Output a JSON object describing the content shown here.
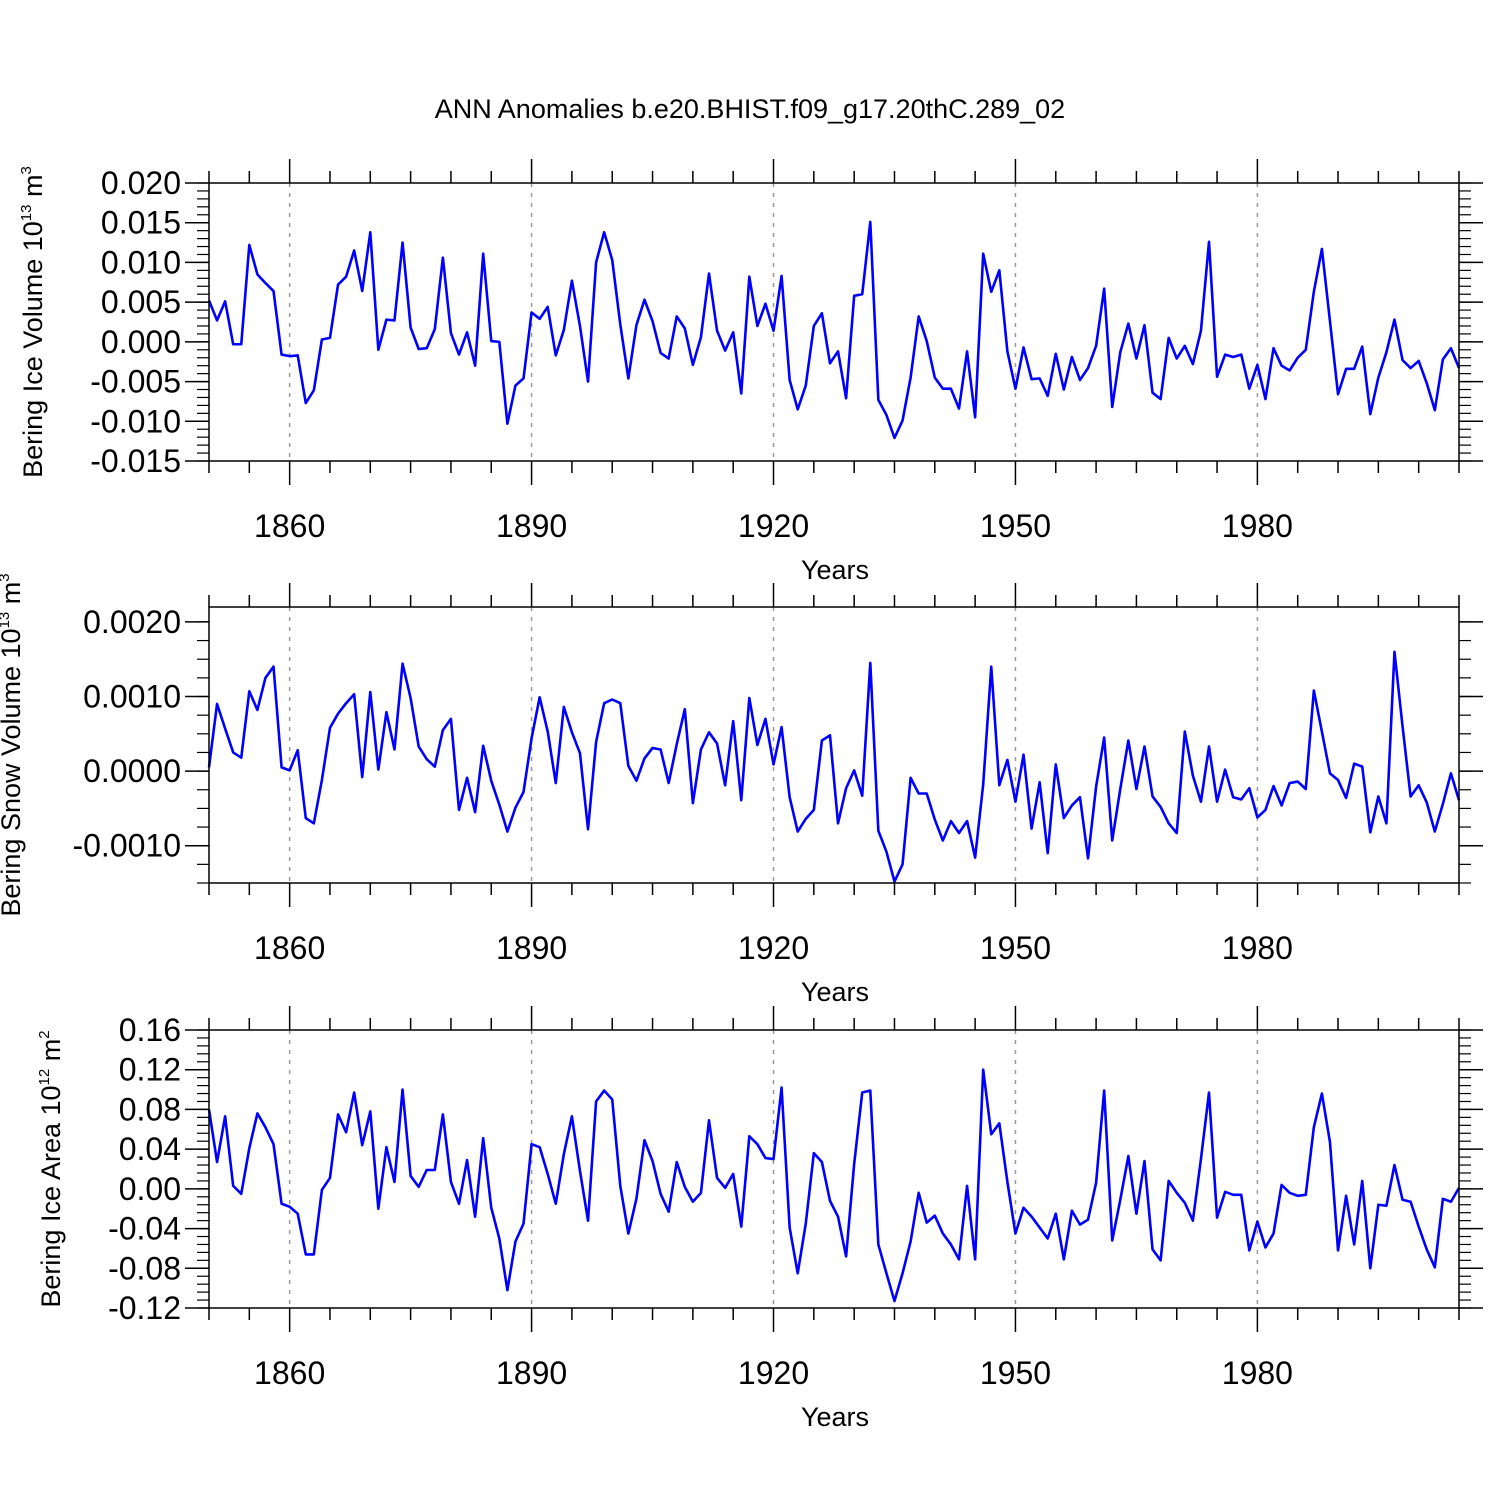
{
  "title": "ANN Anomalies b.e20.BHIST.f09_g17.20thC.289_02",
  "colors": {
    "series": "#0000ff",
    "axes": "#000000",
    "gridline": "#999999"
  },
  "chart_data": [
    {
      "type": "line",
      "title": "ANN Anomalies b.e20.BHIST.f09_g17.20thC.289_02",
      "xlabel": "Years",
      "ylabel": {
        "text": "Bering Ice Volume 10",
        "sup": "13",
        "text2": " m",
        "sup2": "3"
      },
      "xlim": [
        1850,
        2005
      ],
      "ylim": [
        -0.015,
        0.02
      ],
      "xticks": [
        1860,
        1890,
        1920,
        1950,
        1980
      ],
      "xtick_labels": [
        "1860",
        "1890",
        "1920",
        "1950",
        "1980"
      ],
      "yticks": [
        -0.015,
        -0.01,
        -0.005,
        0.0,
        0.005,
        0.01,
        0.015,
        0.02
      ],
      "ytick_labels": [
        "-0.015",
        "-0.010",
        "-0.005",
        "0.000",
        "0.005",
        "0.010",
        "0.015",
        "0.020"
      ],
      "grid": "vertical dashed at x ticks",
      "x_start": 1850,
      "values": [
        0.0052,
        0.0027,
        0.0051,
        -0.0003,
        -0.0003,
        0.0122,
        0.0085,
        0.0074,
        0.0064,
        -0.0016,
        -0.0018,
        -0.0017,
        -0.0077,
        -0.0061,
        0.0003,
        0.0005,
        0.0072,
        0.0082,
        0.0115,
        0.0064,
        0.0138,
        -0.001,
        0.0028,
        0.0027,
        0.0125,
        0.0018,
        -0.0009,
        -0.0008,
        0.0016,
        0.0106,
        0.0011,
        -0.0016,
        0.0012,
        -0.003,
        0.0111,
        0.0001,
        0.0,
        -0.0103,
        -0.0055,
        -0.0046,
        0.0037,
        0.0029,
        0.0044,
        -0.0017,
        0.0015,
        0.0077,
        0.002,
        -0.005,
        0.01,
        0.0138,
        0.0103,
        0.0022,
        -0.0046,
        0.0021,
        0.0053,
        0.0026,
        -0.0014,
        -0.0021,
        0.0032,
        0.0017,
        -0.0029,
        0.0006,
        0.0086,
        0.0014,
        -0.0011,
        0.0012,
        -0.0065,
        0.0082,
        0.002,
        0.0048,
        0.0014,
        0.0083,
        -0.0048,
        -0.0085,
        -0.0055,
        0.002,
        0.0036,
        -0.0027,
        -0.0012,
        -0.0071,
        0.0058,
        0.006,
        0.0151,
        -0.0073,
        -0.0092,
        -0.0121,
        -0.0099,
        -0.0045,
        0.0032,
        0.0001,
        -0.0045,
        -0.0059,
        -0.0059,
        -0.0084,
        -0.0012,
        -0.0095,
        0.0111,
        0.0063,
        0.009,
        -0.0012,
        -0.0059,
        -0.0007,
        -0.0047,
        -0.0046,
        -0.0068,
        -0.0015,
        -0.006,
        -0.0019,
        -0.0048,
        -0.0033,
        -0.0005,
        0.0067,
        -0.0082,
        -0.0013,
        0.0023,
        -0.0021,
        0.0021,
        -0.0064,
        -0.0072,
        0.0005,
        -0.0021,
        -0.0005,
        -0.0028,
        0.0014,
        0.0126,
        -0.0044,
        -0.0016,
        -0.0019,
        -0.0016,
        -0.0059,
        -0.0029,
        -0.0072,
        -0.0008,
        -0.003,
        -0.0036,
        -0.002,
        -0.001,
        0.0063,
        0.0117,
        0.0026,
        -0.0066,
        -0.0034,
        -0.0034,
        -0.0006,
        -0.0091,
        -0.0045,
        -0.0013,
        0.0028,
        -0.0023,
        -0.0033,
        -0.0024,
        -0.0052,
        -0.0086,
        -0.0022,
        -0.0008,
        -0.0033
      ]
    },
    {
      "type": "line",
      "xlabel": "Years",
      "ylabel": {
        "text": "Bering Snow Volume 10",
        "sup": "13",
        "text2": " m",
        "sup2": "3"
      },
      "xlim": [
        1850,
        2005
      ],
      "ylim": [
        -0.0015,
        0.0022
      ],
      "xticks": [
        1860,
        1890,
        1920,
        1950,
        1980
      ],
      "xtick_labels": [
        "1860",
        "1890",
        "1920",
        "1950",
        "1980"
      ],
      "yticks": [
        -0.001,
        0.0,
        0.001,
        0.002
      ],
      "ytick_labels": [
        "-0.0010",
        "0.0000",
        "0.0010",
        "0.0020"
      ],
      "minor_ytick_step": 0.00025,
      "grid": "vertical dashed at x ticks",
      "x_start": 1850,
      "values": [
        5e-05,
        0.0009,
        0.00057,
        0.00025,
        0.00018,
        0.00107,
        0.00082,
        0.00125,
        0.0014,
        5e-05,
        1e-05,
        0.00028,
        -0.00063,
        -0.0007,
        -0.00012,
        0.00058,
        0.00077,
        0.00091,
        0.00103,
        -8e-05,
        0.00106,
        2e-05,
        0.00079,
        0.00029,
        0.00144,
        0.00098,
        0.00033,
        0.00016,
        6e-05,
        0.00055,
        0.0007,
        -0.00052,
        -9e-05,
        -0.00055,
        0.00034,
        -0.00013,
        -0.00045,
        -0.00081,
        -0.00049,
        -0.00028,
        0.00044,
        0.00099,
        0.00053,
        -0.00016,
        0.00086,
        0.00052,
        0.00024,
        -0.00078,
        0.00039,
        0.00091,
        0.00096,
        0.00091,
        7e-05,
        -0.00013,
        0.00017,
        0.00031,
        0.00029,
        -0.00016,
        0.00036,
        0.00083,
        -0.00043,
        0.00029,
        0.00052,
        0.00037,
        -0.00019,
        0.00067,
        -0.00039,
        0.00098,
        0.00035,
        0.0007,
        9e-05,
        0.00059,
        -0.00035,
        -0.00081,
        -0.00064,
        -0.00052,
        0.00041,
        0.00048,
        -0.0007,
        -0.00023,
        1e-05,
        -0.00033,
        0.00145,
        -0.0008,
        -0.00108,
        -0.00148,
        -0.00125,
        -9e-05,
        -0.0003,
        -0.0003,
        -0.00065,
        -0.00093,
        -0.00067,
        -0.00083,
        -0.00067,
        -0.00116,
        -0.00018,
        0.0014,
        -0.00019,
        0.00015,
        -0.00041,
        0.00022,
        -0.00077,
        -0.00015,
        -0.0011,
        9e-05,
        -0.00063,
        -0.00046,
        -0.00035,
        -0.00117,
        -0.00021,
        0.00045,
        -0.00093,
        -0.00024,
        0.00041,
        -0.00024,
        0.00033,
        -0.00034,
        -0.00048,
        -0.0007,
        -0.00083,
        0.00053,
        -6e-05,
        -0.00041,
        0.00033,
        -0.00041,
        2e-05,
        -0.00035,
        -0.00038,
        -0.00023,
        -0.00062,
        -0.00052,
        -0.0002,
        -0.00046,
        -0.00016,
        -0.00014,
        -0.00024,
        0.00108,
        0.00053,
        -3e-05,
        -0.00012,
        -0.00036,
        0.0001,
        6e-05,
        -0.00082,
        -0.00034,
        -0.0007,
        0.0016,
        0.0006,
        -0.00034,
        -0.00019,
        -0.00042,
        -0.00081,
        -0.00044,
        -3e-05,
        -0.00039
      ]
    },
    {
      "type": "line",
      "xlabel": "Years",
      "ylabel": {
        "text": "Bering Ice Area 10",
        "sup": "12",
        "text2": " m",
        "sup2": "2"
      },
      "xlim": [
        1850,
        2005
      ],
      "ylim": [
        -0.12,
        0.16
      ],
      "xticks": [
        1860,
        1890,
        1920,
        1950,
        1980
      ],
      "xtick_labels": [
        "1860",
        "1890",
        "1920",
        "1950",
        "1980"
      ],
      "yticks": [
        -0.12,
        -0.08,
        -0.04,
        0.0,
        0.04,
        0.08,
        0.12,
        0.16
      ],
      "ytick_labels": [
        "-0.12",
        "-0.08",
        "-0.04",
        "0.00",
        "0.04",
        "0.08",
        "0.12",
        "0.16"
      ],
      "grid": "vertical dashed at x ticks",
      "x_start": 1850,
      "values": [
        0.08,
        0.027,
        0.073,
        0.003,
        -0.005,
        0.041,
        0.076,
        0.062,
        0.045,
        -0.015,
        -0.018,
        -0.025,
        -0.066,
        -0.066,
        -0.001,
        0.011,
        0.075,
        0.057,
        0.097,
        0.044,
        0.078,
        -0.02,
        0.042,
        0.007,
        0.1,
        0.013,
        0.002,
        0.019,
        0.019,
        0.075,
        0.007,
        -0.015,
        0.029,
        -0.028,
        0.051,
        -0.019,
        -0.05,
        -0.102,
        -0.053,
        -0.035,
        0.045,
        0.042,
        0.015,
        -0.015,
        0.035,
        0.073,
        0.018,
        -0.032,
        0.088,
        0.099,
        0.09,
        0.003,
        -0.045,
        -0.01,
        0.049,
        0.028,
        -0.005,
        -0.023,
        0.027,
        0.002,
        -0.013,
        -0.004,
        0.069,
        0.011,
        0.001,
        0.015,
        -0.038,
        0.053,
        0.045,
        0.031,
        0.03,
        0.102,
        -0.039,
        -0.085,
        -0.035,
        0.036,
        0.027,
        -0.012,
        -0.028,
        -0.068,
        0.025,
        0.097,
        0.099,
        -0.056,
        -0.085,
        -0.113,
        -0.085,
        -0.053,
        -0.004,
        -0.034,
        -0.027,
        -0.045,
        -0.056,
        -0.071,
        0.003,
        -0.071,
        0.12,
        0.055,
        0.066,
        0.007,
        -0.045,
        -0.019,
        -0.028,
        -0.039,
        -0.05,
        -0.025,
        -0.071,
        -0.022,
        -0.036,
        -0.031,
        0.006,
        0.099,
        -0.052,
        -0.011,
        0.033,
        -0.025,
        0.028,
        -0.061,
        -0.072,
        0.008,
        -0.004,
        -0.014,
        -0.032,
        0.03,
        0.097,
        -0.029,
        -0.003,
        -0.006,
        -0.006,
        -0.062,
        -0.033,
        -0.059,
        -0.045,
        0.004,
        -0.004,
        -0.007,
        -0.006,
        0.062,
        0.096,
        0.047,
        -0.062,
        -0.007,
        -0.056,
        0.008,
        -0.08,
        -0.016,
        -0.017,
        0.024,
        -0.011,
        -0.013,
        -0.038,
        -0.061,
        -0.079,
        -0.01,
        -0.013,
        0.001
      ]
    }
  ]
}
